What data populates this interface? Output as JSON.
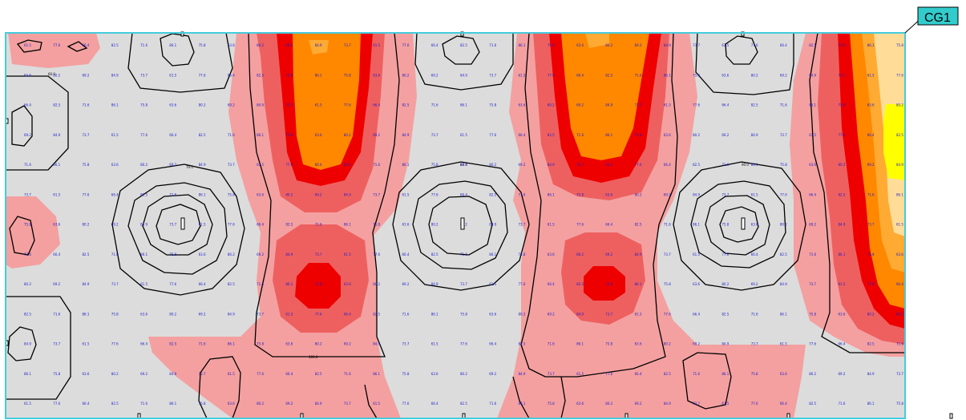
{
  "calc_grid": {
    "tag": "CG1",
    "border_color": "#44ccdd",
    "background_color": "#dcdcdc"
  },
  "legend_colors": {
    "level_1": "#f4a0a0",
    "level_2": "#ee6060",
    "level_3": "#ee0000",
    "level_4": "#ff8800",
    "level_5": "#ffaa33",
    "level_6": "#ffdd99",
    "level_7": "#ffff00"
  },
  "grid_points": {
    "columns": 31,
    "rows": 13,
    "label_color": "#1a1acc",
    "sample_values": [
      "61.5",
      "63.6",
      "66.4",
      "69.2",
      "71.6",
      "73.7",
      "75.8",
      "77.6",
      "80.2",
      "82.5",
      "84.9",
      "86.1"
    ]
  },
  "contour_labels": [
    "60.0",
    "70.0",
    "80.0",
    "90.0",
    "100.0"
  ],
  "luminaires": {
    "count": 5,
    "icon": "luminaire-marker-icon"
  }
}
